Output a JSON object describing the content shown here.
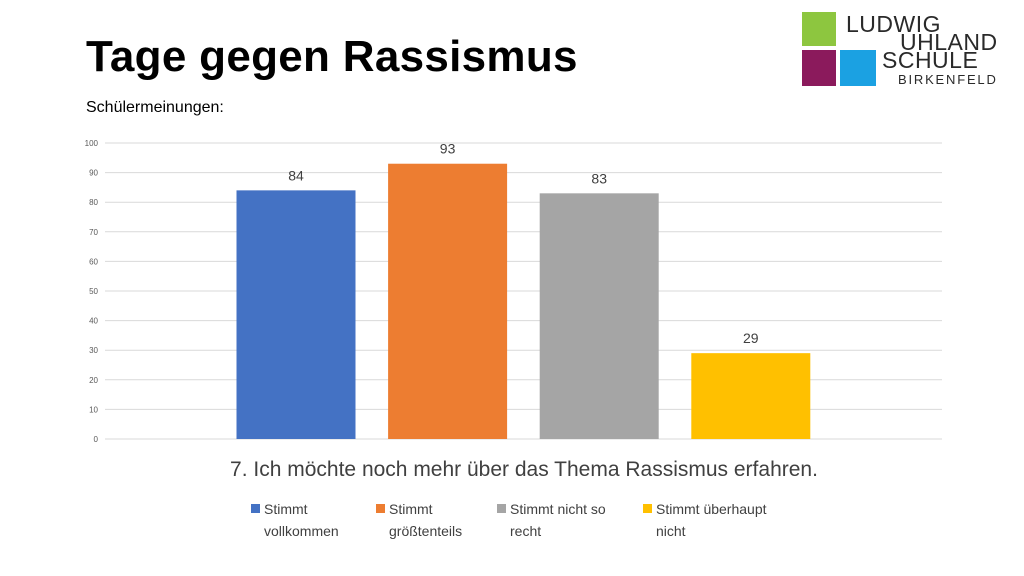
{
  "slide": {
    "title": "Tage gegen Rassismus",
    "subtitle": "Schülermeinungen:"
  },
  "logo": {
    "line1": "LUDWIG",
    "line2": "UHLAND",
    "line3": "SCHULE",
    "line4": "BIRKENFELD",
    "colors": {
      "green": "#8DC63F",
      "purple": "#8B1A5C",
      "blue": "#1BA1E2"
    }
  },
  "chart_data": {
    "type": "bar",
    "title": "7. Ich möchte noch mehr über das Thema Rassismus erfahren.",
    "categories": [
      "Stimmt vollkommen",
      "Stimmt größtenteils",
      "Stimmt nicht so recht",
      "Stimmt überhaupt nicht"
    ],
    "values": [
      84,
      93,
      83,
      29
    ],
    "colors": [
      "#4472C4",
      "#ED7D31",
      "#A5A5A5",
      "#FFC000"
    ],
    "ylim": [
      0,
      100
    ],
    "yticks": [
      0,
      10,
      20,
      30,
      40,
      50,
      60,
      70,
      80,
      90,
      100
    ],
    "grid": true,
    "legend_position": "bottom",
    "legend": [
      [
        "Stimmt",
        "vollkommen"
      ],
      [
        "Stimmt",
        "größtenteils"
      ],
      [
        "Stimmt nicht so",
        "recht"
      ],
      [
        "Stimmt überhaupt",
        "nicht"
      ]
    ],
    "xlabel": "",
    "ylabel": ""
  }
}
